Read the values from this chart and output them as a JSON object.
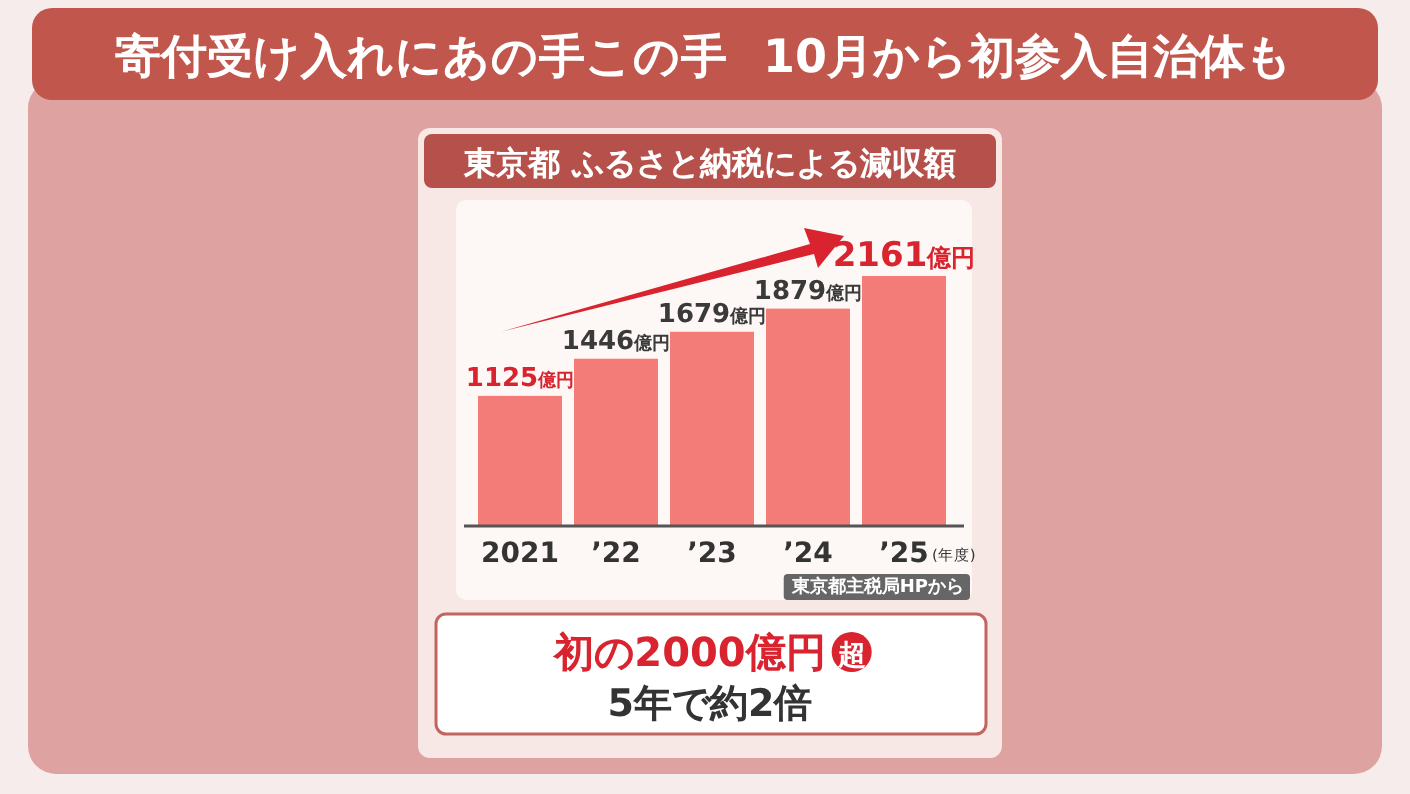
{
  "chart_data": {
    "type": "bar",
    "title": "寄付受け入れにあの手この手",
    "subtitle": "10月から初参入自治体も",
    "ylabel": "東京都 ふるさと納税による減収額",
    "xlabel": "(年度)",
    "categories": [
      "2021",
      "’22",
      "’23",
      "’24",
      "’25"
    ],
    "values": [
      1125,
      1446,
      1679,
      1879,
      2161
    ],
    "value_labels": [
      "1125億円",
      "1446億円",
      "1679億円",
      "1879億円",
      "2161億円"
    ],
    "color": "#f47c78",
    "annotations": [
      "東京都主税局HPから",
      "初の2000億円超",
      "5年で約2倍"
    ]
  }
}
